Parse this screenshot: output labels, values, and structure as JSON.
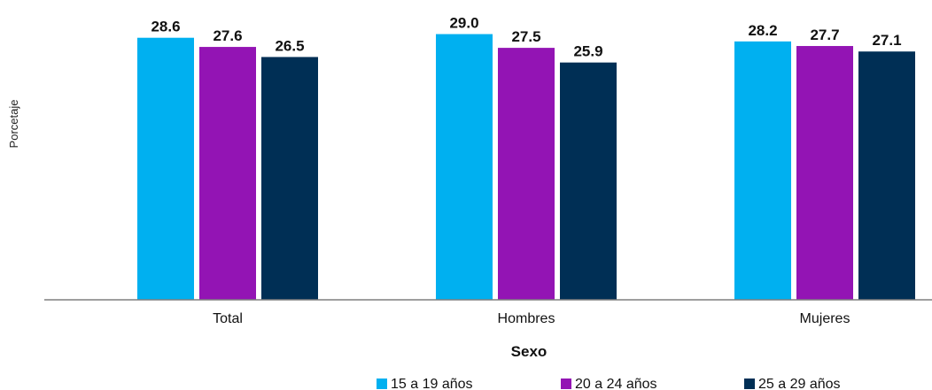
{
  "chart_data": {
    "type": "bar",
    "title": "",
    "xlabel": "Sexo",
    "ylabel": "Porcetaje",
    "categories": [
      "Total",
      "Hombres",
      "Mujeres"
    ],
    "series": [
      {
        "name": "15 a 19 años",
        "color": "#00B0F0",
        "values": [
          28.6,
          29.0,
          28.2
        ],
        "labels": [
          "28.6",
          "29.0",
          "28.2"
        ]
      },
      {
        "name": "20 a 24 años",
        "color": "#9314B4",
        "values": [
          27.6,
          27.5,
          27.7
        ],
        "labels": [
          "27.6",
          "27.5",
          "27.7"
        ]
      },
      {
        "name": "25 a 29 años",
        "color": "#002F55",
        "values": [
          26.5,
          25.9,
          27.1
        ],
        "labels": [
          "26.5",
          "25.9",
          "27.1"
        ]
      }
    ],
    "ylim": [
      0,
      31
    ],
    "grid": false,
    "legend_position": "bottom-right",
    "axis_color": "#7f7f7f"
  }
}
